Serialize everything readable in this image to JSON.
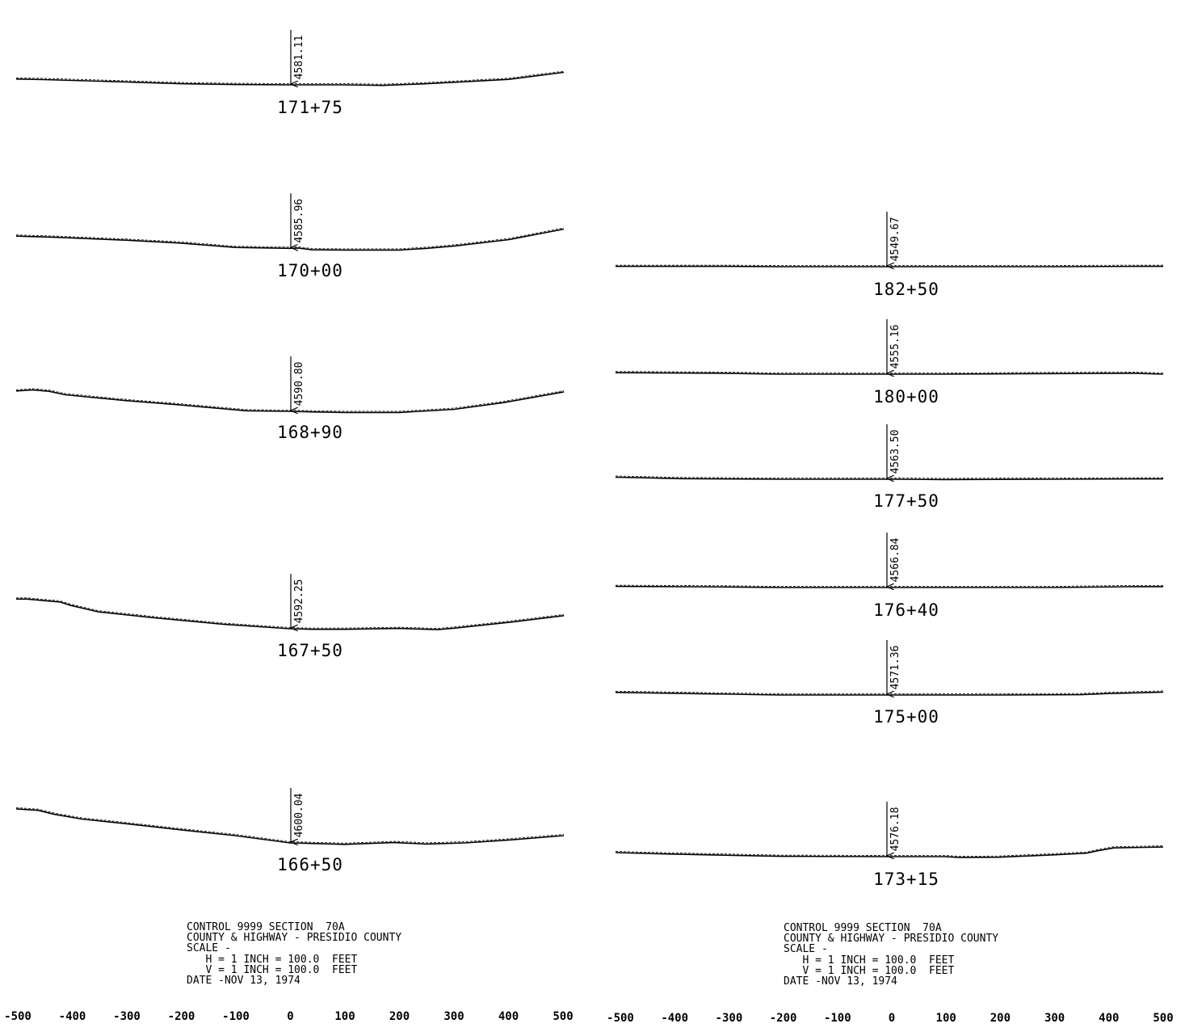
{
  "panels": [
    {
      "id": "left",
      "sections": [
        {
          "station": "171+75",
          "elevation": "4581.11",
          "profile": [
            [
              -500,
              20
            ],
            [
              -450,
              18
            ],
            [
              -300,
              10
            ],
            [
              -200,
              4
            ],
            [
              -100,
              1
            ],
            [
              0,
              0
            ],
            [
              100,
              0
            ],
            [
              170,
              -2
            ],
            [
              250,
              4
            ],
            [
              300,
              9
            ],
            [
              400,
              19
            ],
            [
              500,
              43
            ]
          ]
        },
        {
          "station": "170+00",
          "elevation": "4585.96",
          "profile": [
            [
              -500,
              44
            ],
            [
              -430,
              40
            ],
            [
              -300,
              30
            ],
            [
              -200,
              20
            ],
            [
              -100,
              5
            ],
            [
              0,
              2
            ],
            [
              15,
              3
            ],
            [
              40,
              -3
            ],
            [
              100,
              -4
            ],
            [
              200,
              -4
            ],
            [
              250,
              2
            ],
            [
              300,
              10
            ],
            [
              400,
              32
            ],
            [
              500,
              68
            ]
          ]
        },
        {
          "station": "168+90",
          "elevation": "4590.80",
          "profile": [
            [
              -500,
              70
            ],
            [
              -470,
              74
            ],
            [
              -440,
              69
            ],
            [
              -410,
              57
            ],
            [
              -300,
              37
            ],
            [
              -200,
              22
            ],
            [
              -80,
              2
            ],
            [
              0,
              0
            ],
            [
              40,
              -2
            ],
            [
              100,
              -4
            ],
            [
              200,
              -4
            ],
            [
              300,
              7
            ],
            [
              390,
              30
            ],
            [
              500,
              67
            ]
          ]
        },
        {
          "station": "167+50",
          "elevation": "4592.25",
          "profile": [
            [
              -500,
              102
            ],
            [
              -480,
              102
            ],
            [
              -420,
              92
            ],
            [
              -400,
              80
            ],
            [
              -350,
              58
            ],
            [
              -250,
              38
            ],
            [
              -120,
              15
            ],
            [
              0,
              0
            ],
            [
              40,
              -2
            ],
            [
              100,
              -2
            ],
            [
              200,
              1
            ],
            [
              270,
              -3
            ],
            [
              300,
              2
            ],
            [
              400,
              22
            ],
            [
              500,
              45
            ]
          ]
        },
        {
          "station": "166+50",
          "elevation": "4600.04",
          "profile": [
            [
              -500,
              117
            ],
            [
              -460,
              112
            ],
            [
              -430,
              98
            ],
            [
              -380,
              82
            ],
            [
              -300,
              66
            ],
            [
              -200,
              45
            ],
            [
              -100,
              25
            ],
            [
              0,
              0
            ],
            [
              100,
              -5
            ],
            [
              190,
              1
            ],
            [
              250,
              -4
            ],
            [
              320,
              0
            ],
            [
              400,
              10
            ],
            [
              500,
              25
            ]
          ]
        }
      ],
      "title_block": {
        "line1": "CONTROL 9999 SECTION  70A",
        "line2": "COUNTY & HIGHWAY - PRESIDIO COUNTY",
        "line3": "SCALE -",
        "line4": "   H = 1 INCH = 100.0  FEET",
        "line5": "   V = 1 INCH = 100.0  FEET",
        "line6": "DATE -NOV 13, 1974"
      },
      "axis_ticks": [
        "-500",
        "-400",
        "-300",
        "-200",
        "-100",
        "0",
        "100",
        "200",
        "300",
        "400",
        "500"
      ]
    },
    {
      "id": "right",
      "sections": [
        {
          "station": "182+50",
          "elevation": "4549.67",
          "profile": [
            [
              -500,
              1
            ],
            [
              -300,
              1
            ],
            [
              -200,
              0
            ],
            [
              0,
              0
            ],
            [
              100,
              0
            ],
            [
              300,
              0
            ],
            [
              450,
              1
            ],
            [
              500,
              1
            ]
          ]
        },
        {
          "station": "180+00",
          "elevation": "4555.16",
          "profile": [
            [
              -500,
              5
            ],
            [
              -300,
              3
            ],
            [
              -200,
              0
            ],
            [
              0,
              0
            ],
            [
              100,
              0
            ],
            [
              300,
              2
            ],
            [
              450,
              3
            ],
            [
              500,
              0
            ]
          ]
        },
        {
          "station": "177+50",
          "elevation": "4563.50",
          "profile": [
            [
              -500,
              7
            ],
            [
              -450,
              5
            ],
            [
              -380,
              2
            ],
            [
              -200,
              0
            ],
            [
              0,
              0
            ],
            [
              100,
              -1
            ],
            [
              300,
              0
            ],
            [
              450,
              1
            ],
            [
              500,
              1
            ]
          ]
        },
        {
          "station": "176+40",
          "elevation": "4566.84",
          "profile": [
            [
              -500,
              4
            ],
            [
              -300,
              2
            ],
            [
              -200,
              0
            ],
            [
              0,
              0
            ],
            [
              100,
              0
            ],
            [
              300,
              0
            ],
            [
              450,
              3
            ],
            [
              500,
              3
            ]
          ]
        },
        {
          "station": "175+00",
          "elevation": "4571.36",
          "profile": [
            [
              -500,
              9
            ],
            [
              -400,
              6
            ],
            [
              -200,
              0
            ],
            [
              0,
              0
            ],
            [
              200,
              0
            ],
            [
              350,
              1
            ],
            [
              400,
              5
            ],
            [
              500,
              10
            ]
          ]
        },
        {
          "station": "173+15",
          "elevation": "4576.18",
          "profile": [
            [
              -500,
              14
            ],
            [
              -400,
              9
            ],
            [
              -200,
              1
            ],
            [
              0,
              0
            ],
            [
              100,
              0
            ],
            [
              130,
              -3
            ],
            [
              200,
              -2
            ],
            [
              300,
              6
            ],
            [
              360,
              12
            ],
            [
              380,
              20
            ],
            [
              410,
              30
            ],
            [
              500,
              33
            ]
          ]
        }
      ],
      "title_block": {
        "line1": "CONTROL 9999 SECTION  70A",
        "line2": "COUNTY & HIGHWAY - PRESIDIO COUNTY",
        "line3": "SCALE -",
        "line4": "   H = 1 INCH = 100.0  FEET",
        "line5": "   V = 1 INCH = 100.0  FEET",
        "line6": "DATE -NOV 13, 1974"
      },
      "axis_ticks": [
        "-500",
        "-400",
        "-300",
        "-200",
        "-100",
        "0",
        "100",
        "200",
        "300",
        "400",
        "500"
      ]
    }
  ]
}
